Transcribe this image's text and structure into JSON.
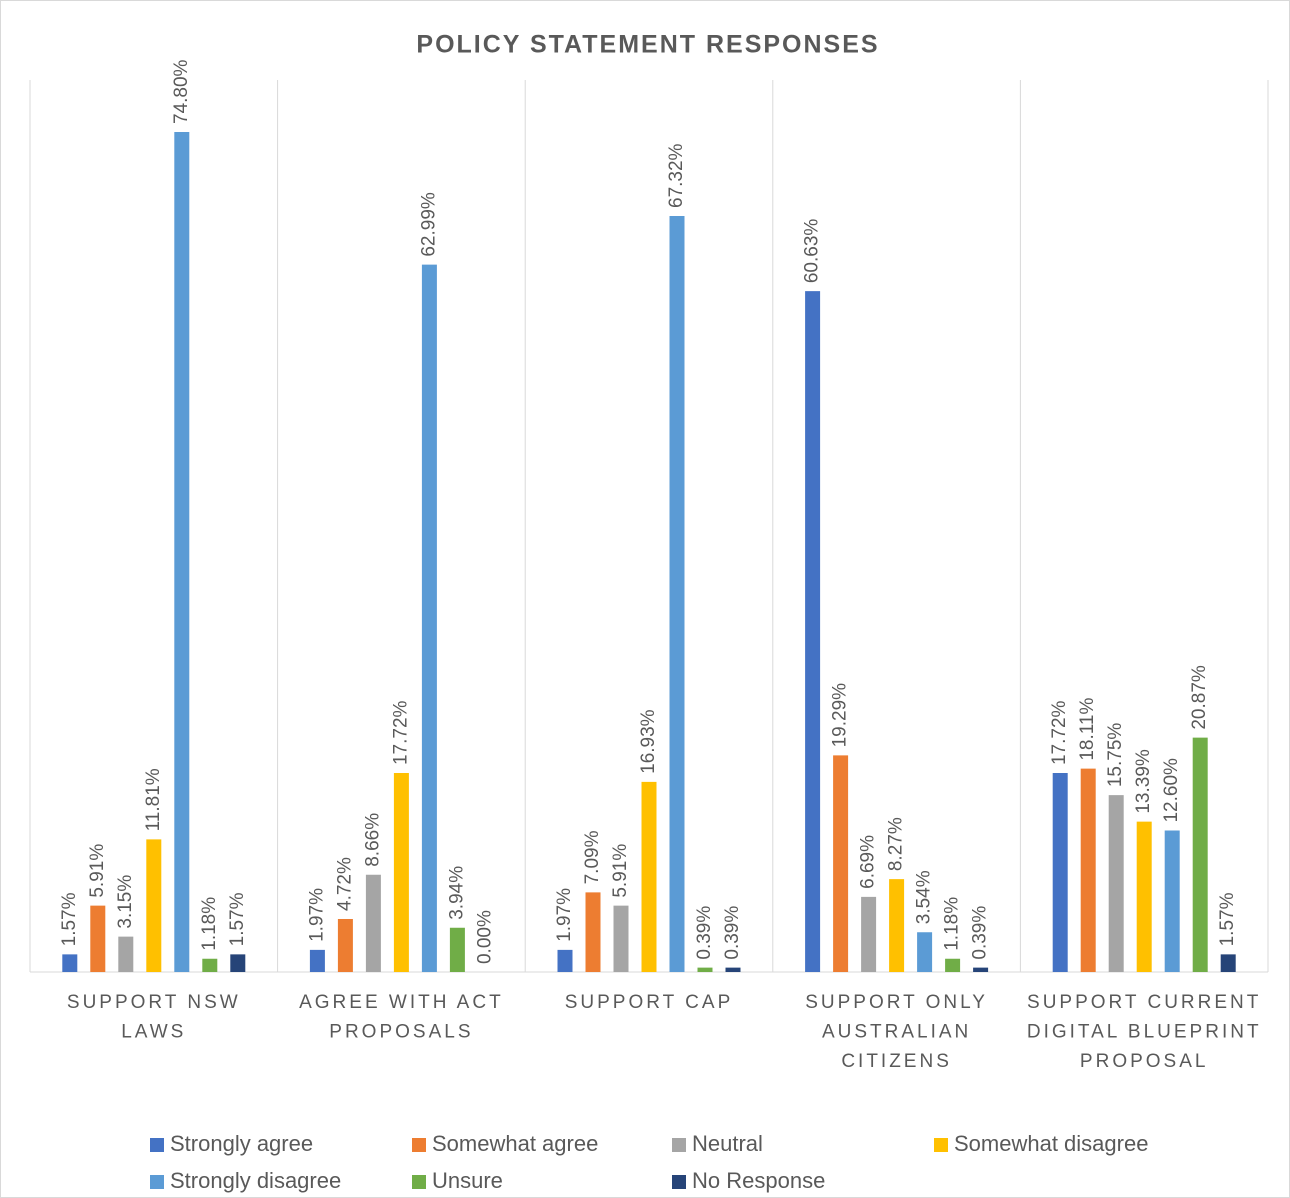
{
  "chart_data": {
    "type": "bar",
    "title": "POLICY STATEMENT RESPONSES",
    "categories": [
      "SUPPORT NSW LAWS",
      "AGREE WITH ACT PROPOSALS",
      "SUPPORT CAP",
      "SUPPORT ONLY AUSTRALIAN CITIZENS",
      "SUPPORT CURRENT DIGITAL BLUEPRINT PROPOSAL"
    ],
    "series": [
      {
        "name": "Strongly agree",
        "color": "#4472c4",
        "values": [
          1.57,
          1.97,
          1.97,
          60.63,
          17.72
        ],
        "value_labels": [
          "1.57%",
          "1.97%",
          "1.97%",
          "60.63%",
          "17.72%"
        ]
      },
      {
        "name": "Somewhat agree",
        "color": "#ed7d31",
        "values": [
          5.91,
          4.72,
          7.09,
          19.29,
          18.11
        ],
        "value_labels": [
          "5.91%",
          "4.72%",
          "7.09%",
          "19.29%",
          "18.11%"
        ]
      },
      {
        "name": "Neutral",
        "color": "#a5a5a5",
        "values": [
          3.15,
          8.66,
          5.91,
          6.69,
          15.75
        ],
        "value_labels": [
          "3.15%",
          "8.66%",
          "5.91%",
          "6.69%",
          "15.75%"
        ]
      },
      {
        "name": "Somewhat disagree",
        "color": "#ffc000",
        "values": [
          11.81,
          17.72,
          16.93,
          8.27,
          13.39
        ],
        "value_labels": [
          "11.81%",
          "17.72%",
          "16.93%",
          "8.27%",
          "13.39%"
        ]
      },
      {
        "name": "Strongly disagree",
        "color": "#5b9bd5",
        "values": [
          74.8,
          62.99,
          67.32,
          3.54,
          12.6
        ],
        "value_labels": [
          "74.80%",
          "62.99%",
          "67.32%",
          "3.54%",
          "12.60%"
        ]
      },
      {
        "name": "Unsure",
        "color": "#70ad47",
        "values": [
          1.18,
          3.94,
          0.39,
          1.18,
          20.87
        ],
        "value_labels": [
          "1.18%",
          "3.94%",
          "0.39%",
          "1.18%",
          "20.87%"
        ]
      },
      {
        "name": "No Response",
        "color": "#264478",
        "values": [
          1.57,
          0.0,
          0.39,
          0.39,
          1.57
        ],
        "value_labels": [
          "1.57%",
          "0.00%",
          "0.39%",
          "0.39%",
          "1.57%"
        ]
      }
    ],
    "legend": "bottom"
  }
}
